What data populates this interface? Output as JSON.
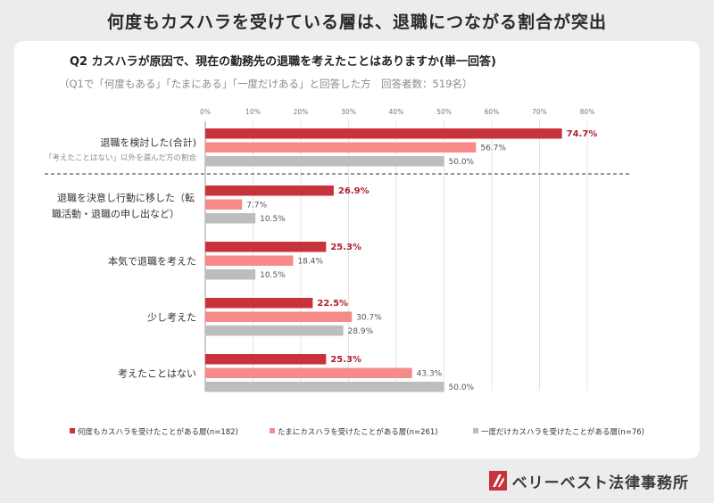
{
  "page": {
    "headline": "何度もカスハラを受けている層は、退職につながる割合が突出",
    "brand": "ベリーベスト法律事務所",
    "brand_icon": "bb-logo-icon"
  },
  "chart_data": {
    "type": "bar",
    "orientation": "horizontal",
    "title": "Q2 カスハラが原因で、現在の勤務先の退職を考えたことはありますか(単一回答)",
    "subtitle": "（Q1で「何度もある」「たまにある」「一度だけある」と回答した方　回答者数：519名）",
    "xlim": [
      0,
      80
    ],
    "x_ticks": [
      "0%",
      "10%",
      "20%",
      "30%",
      "40%",
      "50%",
      "60%",
      "70%",
      "80%"
    ],
    "grid": true,
    "legend_position": "bottom",
    "categories": [
      {
        "label": [
          "退職を検討した(合計)"
        ],
        "note": "「考えたことはない」以外を選んだ方の割合"
      },
      {
        "label": [
          "退職を決意し行動に移した（転",
          "職活動・退職の申し出など）"
        ]
      },
      {
        "label": [
          "本気で退職を考えた"
        ]
      },
      {
        "label": [
          "少し考えた"
        ]
      },
      {
        "label": [
          "考えたことはない"
        ]
      }
    ],
    "series": [
      {
        "name": "何度もカスハラを受けたことがある層(n=182)",
        "color": "#c8323a",
        "labels": [
          "74.7%",
          "26.9%",
          "25.3%",
          "22.5%",
          "25.3%"
        ],
        "values": [
          74.7,
          26.9,
          25.3,
          22.5,
          25.3
        ]
      },
      {
        "name": "たまにカスハラを受けたことがある層(n=261)",
        "color": "#f58a88",
        "labels": [
          "56.7%",
          "7.7%",
          "18.4%",
          "30.7%",
          "43.3%"
        ],
        "values": [
          56.7,
          7.7,
          18.4,
          30.7,
          43.3
        ]
      },
      {
        "name": "一度だけカスハラを受けたことがある層(n=76)",
        "color": "#bdbdbd",
        "labels": [
          "50.0%",
          "10.5%",
          "10.5%",
          "28.9%",
          "50.0%"
        ],
        "values": [
          50.0,
          10.5,
          10.5,
          28.9,
          50.0
        ]
      }
    ],
    "label_colors": {
      "highlight": "#b0202a",
      "normal": "#555555"
    }
  }
}
